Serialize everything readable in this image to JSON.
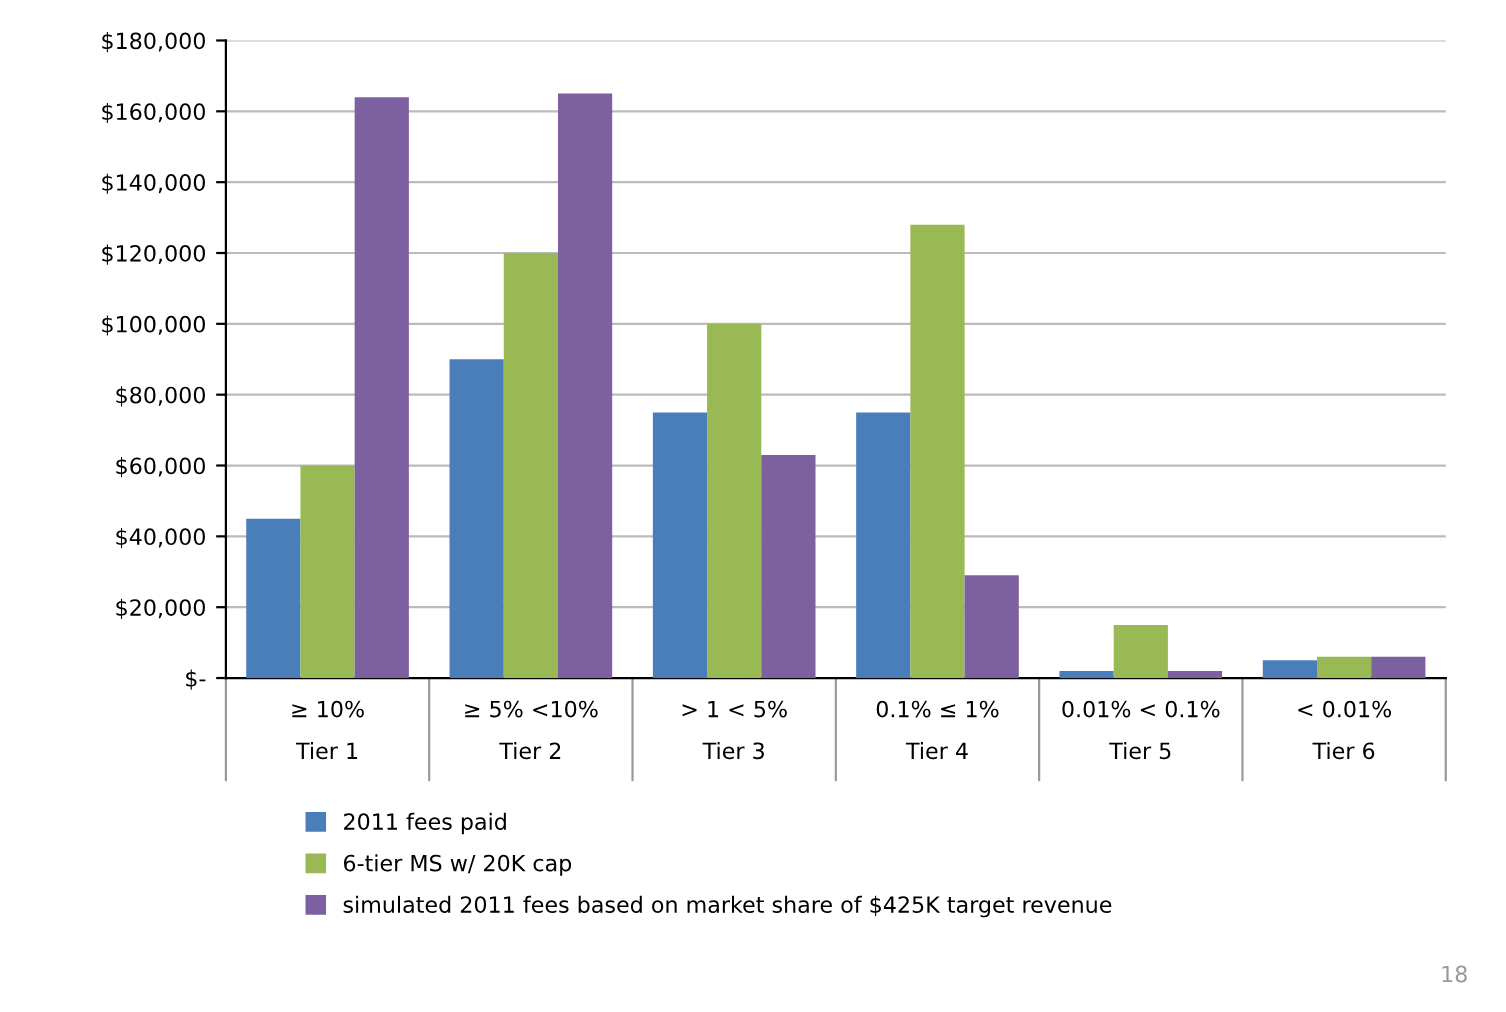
{
  "chart_data": {
    "type": "bar",
    "categories": [
      "≥ 10%\nTier 1",
      "≥ 5% <10%\nTier 2",
      "> 1 < 5%\nTier 3",
      "0.1% ≤ 1%\nTier 4",
      "0.01% < 0.1%\nTier 5",
      "< 0.01%\nTier 6"
    ],
    "series": [
      {
        "name": "2011 fees paid",
        "color": "#4a7ebb",
        "values": [
          45000,
          90000,
          75000,
          75000,
          2000,
          5000
        ]
      },
      {
        "name": "6-tier MS w/ 20K cap",
        "color": "#98b954",
        "values": [
          60000,
          120000,
          100000,
          128000,
          15000,
          6000
        ]
      },
      {
        "name": "simulated 2011 fees based on market share of $425K target revenue",
        "color": "#7d60a0",
        "values": [
          164000,
          165000,
          63000,
          29000,
          2000,
          6000
        ]
      }
    ],
    "ylim": [
      0,
      180000
    ],
    "yticks": [
      {
        "value": 0,
        "label": "$-"
      },
      {
        "value": 20000,
        "label": "$20,000"
      },
      {
        "value": 40000,
        "label": "$40,000"
      },
      {
        "value": 60000,
        "label": "$60,000"
      },
      {
        "value": 80000,
        "label": "$80,000"
      },
      {
        "value": 100000,
        "label": "$100,000"
      },
      {
        "value": 120000,
        "label": "$120,000"
      },
      {
        "value": 140000,
        "label": "$140,000"
      },
      {
        "value": 160000,
        "label": "$160,000"
      },
      {
        "value": 180000,
        "label": "$180,000"
      }
    ],
    "grid": "y",
    "legend": "bottom",
    "annotations": [
      "18"
    ]
  }
}
